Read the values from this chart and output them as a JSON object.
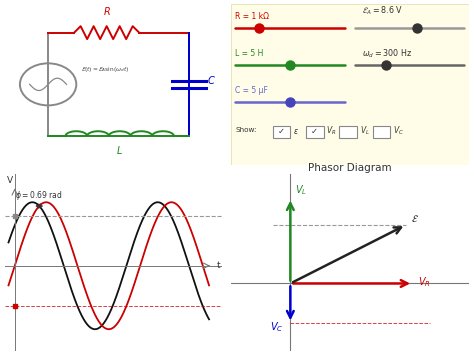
{
  "title_top": "Phasor Diagram",
  "phi": 0.69,
  "background_top": "#fffde8",
  "background_main": "#ffffff",
  "circuit_color_R": "#cc0000",
  "circuit_color_L": "#228822",
  "circuit_color_C": "#0000cc",
  "circuit_color_box": "#888888",
  "wave_emf_color": "#111111",
  "wave_vr_color": "#cc0000",
  "phasor_emf_color": "#222222",
  "phasor_vr_color": "#cc0000",
  "phasor_vl_color": "#228822",
  "phasor_vc_color": "#0000cc",
  "dashed_gray": "#999999",
  "dashed_red": "#cc0000",
  "label_R": "R = 1 kΩ",
  "label_L": "L = 5 H",
  "label_C": "C = 5 μF",
  "label_EA": "ε_A = 8.6 V",
  "label_omega": "ω_d = 300 Hz",
  "vr_mag": 0.72,
  "vl_mag": 0.82,
  "vc_mag": 0.38,
  "emf_mag": 0.88
}
